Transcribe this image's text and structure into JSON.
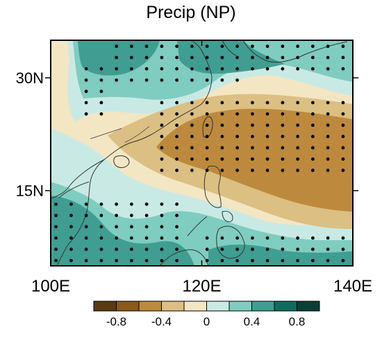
{
  "title": "Precip (NP)",
  "map": {
    "lon_range": [
      100,
      140
    ],
    "lat_range": [
      5,
      35
    ],
    "lon_ticks": [
      {
        "value": 100,
        "label": "100E"
      },
      {
        "value": 120,
        "label": "120E"
      },
      {
        "value": 140,
        "label": "140E"
      }
    ],
    "lat_ticks": [
      {
        "value": 30,
        "label": "30N"
      },
      {
        "value": 15,
        "label": "15N"
      }
    ],
    "stippling": "significance dots"
  },
  "colorbar": {
    "colors": [
      "#5a3a10",
      "#8a5a1a",
      "#bd8a3d",
      "#dcbf82",
      "#f3e6c3",
      "#c9eae4",
      "#7fcdc0",
      "#3f9e91",
      "#0f6b5e",
      "#0a3f36"
    ],
    "labels": [
      {
        "pos": 1,
        "text": "-0.8"
      },
      {
        "pos": 3,
        "text": "-0.4"
      },
      {
        "pos": 5,
        "text": "0"
      },
      {
        "pos": 7,
        "text": "0.4"
      },
      {
        "pos": 9,
        "text": "0.8"
      }
    ]
  },
  "colors": {
    "neutral": "#f3e6c3",
    "coast": "#333333",
    "dot": "#000000"
  }
}
